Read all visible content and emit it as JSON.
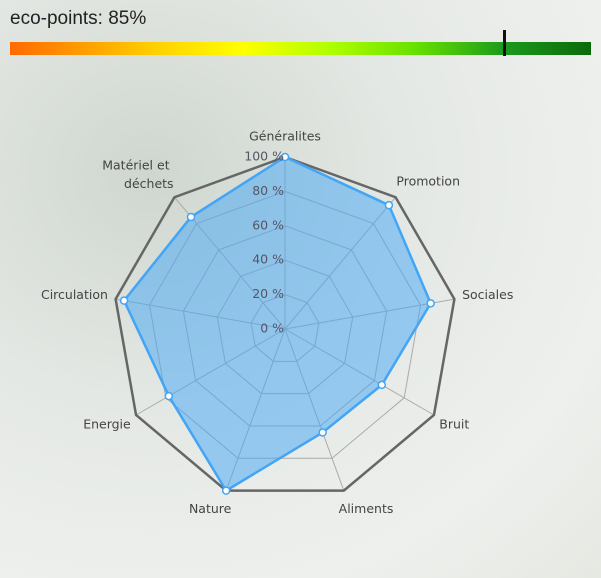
{
  "eco_points": {
    "label": "eco-points: 85%",
    "value": 85,
    "min": 0,
    "max": 100
  },
  "chart_data": {
    "type": "radar",
    "categories": [
      "Généralites",
      "Promotion",
      "Sociales",
      "Bruit",
      "Aliments",
      "Nature",
      "Energie",
      "Circulation",
      "Matériel et déchets"
    ],
    "series": [
      {
        "name": "eco-points",
        "color": "#42a5f5",
        "values": [
          100,
          94,
          86,
          65,
          64,
          100,
          78,
          95,
          85
        ]
      }
    ],
    "ylim": [
      0,
      100
    ],
    "yticks": [
      {
        "value": 0,
        "label": "0 %"
      },
      {
        "value": 20,
        "label": "20 %"
      },
      {
        "value": 40,
        "label": "40 %"
      },
      {
        "value": 60,
        "label": "60 %"
      },
      {
        "value": 80,
        "label": "80 %"
      },
      {
        "value": 100,
        "label": "100 %"
      }
    ],
    "grid": true
  }
}
